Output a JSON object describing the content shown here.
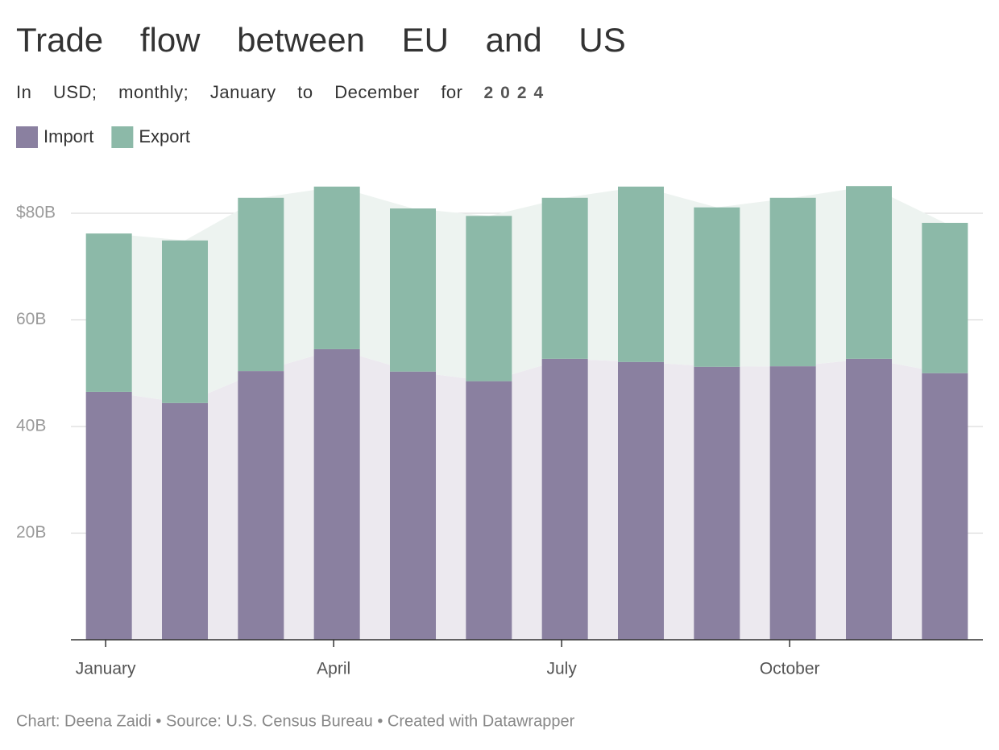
{
  "chart_data": {
    "type": "stacked_bar",
    "title": "Trade flow between EU and US",
    "subtitle": "In USD; monthly; January to December for",
    "subtitle_year": "2024",
    "source": "Chart: Deena Zaidi • Source: U.S. Census Bureau • Created with Datawrapper",
    "categories": [
      "January",
      null,
      null,
      "April",
      null,
      null,
      "July",
      null,
      null,
      "October",
      null,
      null
    ],
    "series": [
      {
        "name": "Import",
        "color": "#8a80a0",
        "area_color": "#ece9ef",
        "values": [
          46.5,
          44.4,
          50.4,
          54.5,
          50.3,
          48.5,
          52.7,
          52.1,
          51.2,
          51.3,
          52.7,
          50.0
        ]
      },
      {
        "name": "Export",
        "color": "#8cb9a8",
        "area_color": "#edf3f0",
        "values": [
          29.7,
          30.5,
          32.5,
          30.5,
          30.6,
          31.0,
          30.2,
          32.9,
          29.9,
          31.6,
          32.4,
          28.2
        ]
      }
    ],
    "ylim": [
      0,
      87
    ],
    "yticks": [
      {
        "value": 20,
        "label": "20B"
      },
      {
        "value": 40,
        "label": "40B"
      },
      {
        "value": 60,
        "label": "60B"
      },
      {
        "value": 80,
        "label": "$80B"
      }
    ],
    "grid": true
  }
}
